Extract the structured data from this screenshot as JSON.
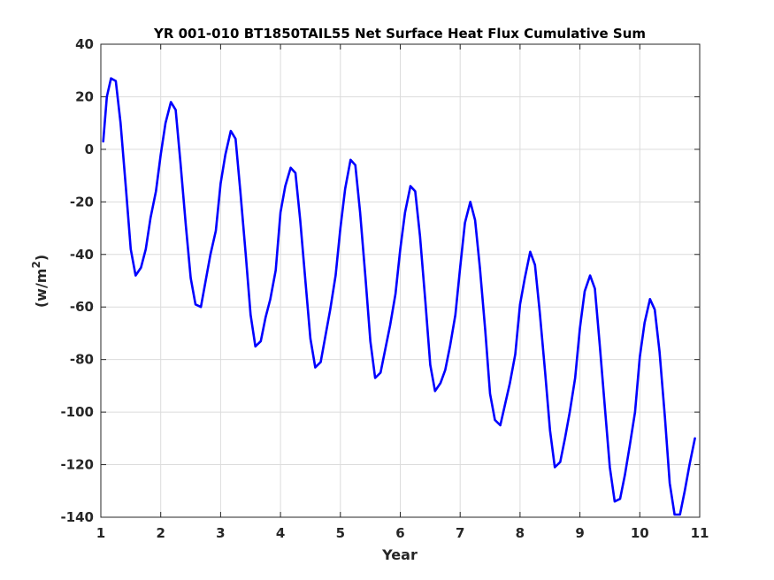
{
  "chart_data": {
    "type": "line",
    "title": "YR 001-010 BT1850TAIL55 Net Surface Heat Flux  Cumulative Sum",
    "xlabel": "Year",
    "ylabel": "(w/m",
    "ylabel_sup": "2",
    "ylabel_close": ")",
    "xlim": [
      1,
      11
    ],
    "ylim": [
      -140,
      40
    ],
    "xticks": [
      1,
      2,
      3,
      4,
      5,
      6,
      7,
      8,
      9,
      10,
      11
    ],
    "yticks": [
      -140,
      -120,
      -100,
      -80,
      -60,
      -40,
      -20,
      0,
      20,
      40
    ],
    "grid": true,
    "line_color": "#0000ff",
    "series": [
      {
        "x": [
          1.04,
          1.1,
          1.17,
          1.25,
          1.33,
          1.42,
          1.5,
          1.58,
          1.67,
          1.75,
          1.83,
          1.92,
          2.0,
          2.08,
          2.17,
          2.25,
          2.33,
          2.42,
          2.5,
          2.58,
          2.67,
          2.75,
          2.83,
          2.92,
          3.0,
          3.08,
          3.17,
          3.25,
          3.33,
          3.42,
          3.5,
          3.58,
          3.67,
          3.75,
          3.83,
          3.92,
          4.0,
          4.08,
          4.17,
          4.25,
          4.33,
          4.42,
          4.5,
          4.58,
          4.67,
          4.75,
          4.83,
          4.92,
          5.0,
          5.08,
          5.17,
          5.25,
          5.33,
          5.42,
          5.5,
          5.58,
          5.67,
          5.75,
          5.83,
          5.92,
          6.0,
          6.08,
          6.17,
          6.25,
          6.33,
          6.42,
          6.5,
          6.58,
          6.67,
          6.75,
          6.83,
          6.92,
          7.0,
          7.08,
          7.17,
          7.25,
          7.33,
          7.42,
          7.5,
          7.58,
          7.67,
          7.75,
          7.83,
          7.92,
          8.0,
          8.08,
          8.17,
          8.25,
          8.33,
          8.42,
          8.5,
          8.58,
          8.67,
          8.75,
          8.83,
          8.92,
          9.0,
          9.08,
          9.17,
          9.25,
          9.33,
          9.42,
          9.5,
          9.58,
          9.67,
          9.75,
          9.83,
          9.92,
          10.0,
          10.08,
          10.17,
          10.25,
          10.33,
          10.42,
          10.5,
          10.58,
          10.67,
          10.75,
          10.83,
          10.92
        ],
        "y": [
          3,
          20,
          27,
          26,
          10,
          -15,
          -38,
          -48,
          -45,
          -38,
          -26,
          -16,
          -2,
          10,
          18,
          15,
          -5,
          -29,
          -49,
          -59,
          -60,
          -50,
          -40,
          -31,
          -13,
          -2,
          7,
          4,
          -16,
          -40,
          -63,
          -75,
          -73,
          -64,
          -57,
          -46,
          -24,
          -14,
          -7,
          -9,
          -27,
          -51,
          -72,
          -83,
          -81,
          -71,
          -61,
          -48,
          -30,
          -15,
          -4,
          -6,
          -24,
          -49,
          -73,
          -87,
          -85,
          -76,
          -67,
          -55,
          -38,
          -24,
          -14,
          -16,
          -33,
          -58,
          -82,
          -92,
          -89,
          -84,
          -75,
          -63,
          -45,
          -28,
          -20,
          -27,
          -45,
          -69,
          -93,
          -103,
          -105,
          -97,
          -89,
          -78,
          -59,
          -49,
          -39,
          -44,
          -62,
          -85,
          -107,
          -121,
          -119,
          -110,
          -100,
          -87,
          -68,
          -54,
          -48,
          -53,
          -74,
          -99,
          -121,
          -134,
          -133,
          -124,
          -113,
          -100,
          -79,
          -66,
          -57,
          -61,
          -77,
          -102,
          -127,
          -139,
          -139,
          -130,
          -120,
          -110
        ]
      }
    ]
  }
}
